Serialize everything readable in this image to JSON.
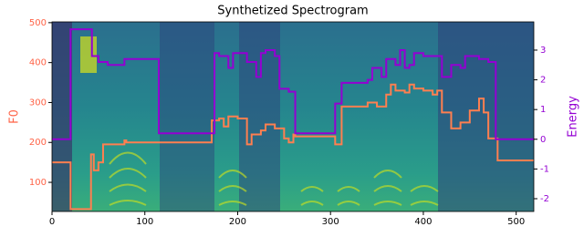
{
  "chart_data": {
    "type": "line",
    "title": "Synthetized Spectrogram",
    "ylabel": "F0",
    "y2label": "Energy",
    "xlim": [
      0,
      519
    ],
    "xticks": [
      0,
      100,
      200,
      300,
      400,
      500
    ],
    "ylim": [
      27,
      502
    ],
    "yticks": [
      100,
      200,
      300,
      400,
      500
    ],
    "y2lim": [
      -2.43,
      3.95
    ],
    "y2ticks": [
      -2,
      -1,
      0,
      1,
      2,
      3
    ],
    "ylabel_color": "#ff6347",
    "y2label_color": "#9400d3",
    "drawstyle": "steps",
    "series": [
      {
        "color": "#ff7f50",
        "axis": "y",
        "x": [
          0,
          20,
          42,
          45,
          50,
          55,
          78,
          80,
          172,
          180,
          185,
          190,
          200,
          210,
          215,
          225,
          230,
          240,
          250,
          255,
          260,
          262,
          305,
          312,
          340,
          350,
          360,
          365,
          370,
          380,
          385,
          390,
          400,
          410,
          415,
          420,
          430,
          440,
          450,
          460,
          465,
          470,
          480,
          519
        ],
        "values": [
          150,
          33,
          170,
          130,
          150,
          195,
          205,
          200,
          255,
          260,
          240,
          265,
          260,
          195,
          220,
          230,
          245,
          235,
          210,
          200,
          220,
          215,
          195,
          290,
          300,
          290,
          320,
          345,
          330,
          325,
          345,
          335,
          330,
          320,
          330,
          275,
          235,
          250,
          280,
          310,
          275,
          210,
          155,
          155
        ]
      },
      {
        "color": "#9400d3",
        "axis": "y2",
        "x": [
          0,
          20,
          43,
          50,
          60,
          78,
          115,
          175,
          180,
          190,
          195,
          210,
          220,
          225,
          230,
          240,
          245,
          255,
          262,
          305,
          312,
          340,
          345,
          355,
          360,
          370,
          375,
          380,
          385,
          390,
          400,
          420,
          430,
          440,
          445,
          460,
          470,
          478,
          519
        ],
        "values": [
          0,
          3.7,
          2.8,
          2.6,
          2.5,
          2.7,
          0.2,
          2.9,
          2.8,
          2.4,
          2.9,
          2.6,
          2.1,
          2.9,
          3.0,
          2.8,
          1.7,
          1.6,
          0.2,
          1.2,
          1.9,
          2.0,
          2.4,
          2.1,
          2.7,
          2.5,
          3.0,
          2.4,
          2.5,
          2.9,
          2.8,
          2.1,
          2.5,
          2.4,
          2.8,
          2.7,
          2.6,
          0.0,
          0.0
        ]
      }
    ]
  }
}
